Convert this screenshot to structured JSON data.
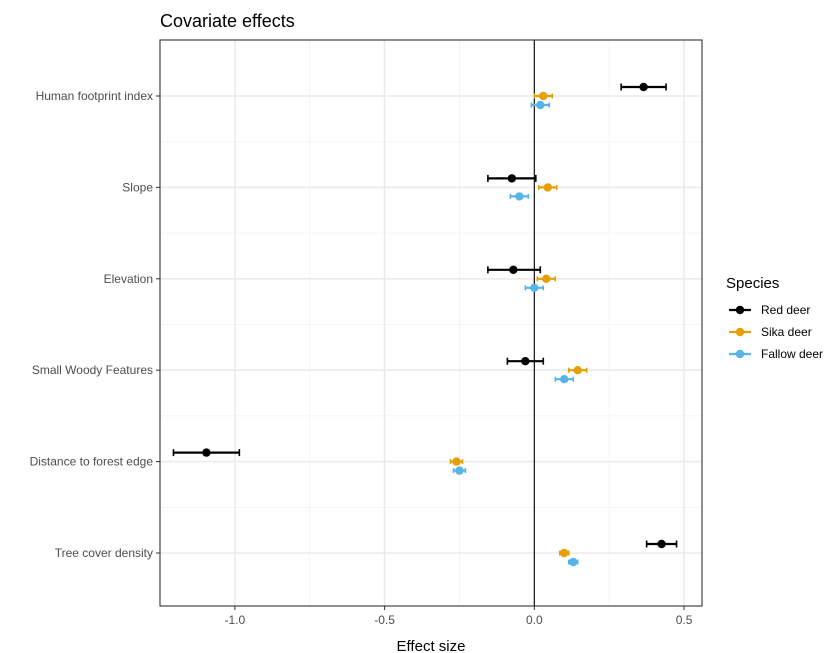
{
  "chart_data": {
    "type": "scatter",
    "title": "Covariate effects",
    "xlabel": "Effect size",
    "ylabel": "",
    "xlim": [
      -1.25,
      0.56
    ],
    "xticks": [
      -1.0,
      -0.5,
      0.0,
      0.5
    ],
    "xtick_labels": [
      "-1.0",
      "-0.5",
      "0.0",
      "0.5"
    ],
    "categories": [
      "Human footprint index",
      "Slope",
      "Elevation",
      "Small Woody Features",
      "Distance to forest edge",
      "Tree cover density"
    ],
    "reference_line_x": 0,
    "grid": true,
    "legend": {
      "title": "Species",
      "position": "right"
    },
    "series": [
      {
        "name": "Red deer",
        "color": "#000000",
        "points": [
          {
            "category": "Human footprint index",
            "estimate": 0.365,
            "lower": 0.29,
            "upper": 0.44
          },
          {
            "category": "Slope",
            "estimate": -0.075,
            "lower": -0.155,
            "upper": 0.005
          },
          {
            "category": "Elevation",
            "estimate": -0.07,
            "lower": -0.155,
            "upper": 0.02
          },
          {
            "category": "Small Woody Features",
            "estimate": -0.03,
            "lower": -0.09,
            "upper": 0.03
          },
          {
            "category": "Distance to forest edge",
            "estimate": -1.095,
            "lower": -1.205,
            "upper": -0.985
          },
          {
            "category": "Tree cover density",
            "estimate": 0.425,
            "lower": 0.375,
            "upper": 0.475
          }
        ]
      },
      {
        "name": "Sika deer",
        "color": "#E69F00",
        "points": [
          {
            "category": "Human footprint index",
            "estimate": 0.03,
            "lower": 0.0,
            "upper": 0.06
          },
          {
            "category": "Slope",
            "estimate": 0.045,
            "lower": 0.015,
            "upper": 0.075
          },
          {
            "category": "Elevation",
            "estimate": 0.04,
            "lower": 0.01,
            "upper": 0.07
          },
          {
            "category": "Small Woody Features",
            "estimate": 0.145,
            "lower": 0.115,
            "upper": 0.175
          },
          {
            "category": "Distance to forest edge",
            "estimate": -0.26,
            "lower": -0.28,
            "upper": -0.24
          },
          {
            "category": "Tree cover density",
            "estimate": 0.1,
            "lower": 0.085,
            "upper": 0.115
          }
        ]
      },
      {
        "name": "Fallow deer",
        "color": "#56B4E9",
        "points": [
          {
            "category": "Human footprint index",
            "estimate": 0.02,
            "lower": -0.01,
            "upper": 0.05
          },
          {
            "category": "Slope",
            "estimate": -0.05,
            "lower": -0.08,
            "upper": -0.02
          },
          {
            "category": "Elevation",
            "estimate": 0.0,
            "lower": -0.03,
            "upper": 0.03
          },
          {
            "category": "Small Woody Features",
            "estimate": 0.1,
            "lower": 0.07,
            "upper": 0.13
          },
          {
            "category": "Distance to forest edge",
            "estimate": -0.25,
            "lower": -0.27,
            "upper": -0.23
          },
          {
            "category": "Tree cover density",
            "estimate": 0.13,
            "lower": 0.115,
            "upper": 0.145
          }
        ]
      }
    ]
  }
}
